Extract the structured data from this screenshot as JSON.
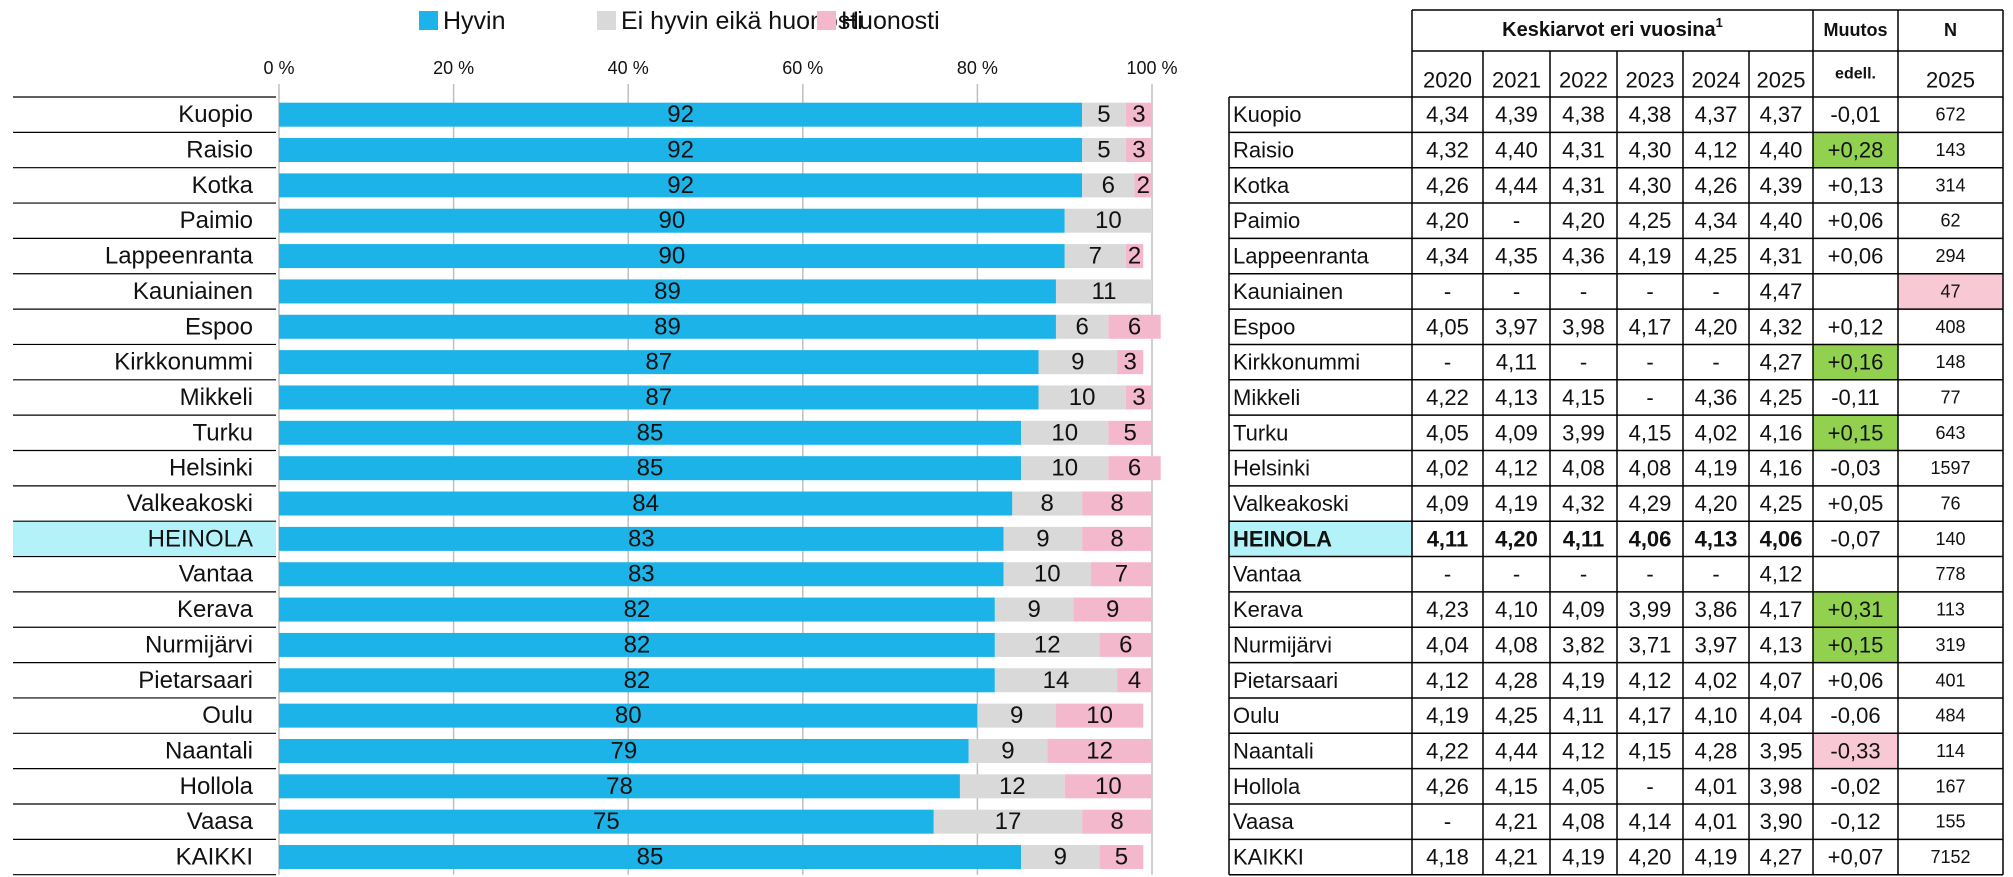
{
  "chart_data": {
    "type": "bar",
    "orientation": "horizontal",
    "stacked": true,
    "categories": [
      "Kuopio",
      "Raisio",
      "Kotka",
      "Paimio",
      "Lappeenranta",
      "Kauniainen",
      "Espoo",
      "Kirkkonummi",
      "Mikkeli",
      "Turku",
      "Helsinki",
      "Valkeakoski",
      "HEINOLA",
      "Vantaa",
      "Kerava",
      "Nurmijärvi",
      "Pietarsaari",
      "Oulu",
      "Naantali",
      "Hollola",
      "Vaasa",
      "KAIKKI"
    ],
    "series": [
      {
        "name": "Hyvin",
        "color": "#1cb4e8",
        "values": [
          92,
          92,
          92,
          90,
          90,
          89,
          89,
          87,
          87,
          85,
          85,
          84,
          83,
          83,
          82,
          82,
          82,
          80,
          79,
          78,
          75,
          85
        ]
      },
      {
        "name": "Ei hyvin eikä huonosti",
        "color": "#d9d9d9",
        "values": [
          5,
          5,
          6,
          10,
          7,
          11,
          6,
          9,
          10,
          10,
          10,
          8,
          9,
          10,
          9,
          12,
          14,
          9,
          9,
          12,
          17,
          9
        ]
      },
      {
        "name": "Huonosti",
        "color": "#f4b8cc",
        "values": [
          3,
          3,
          2,
          null,
          2,
          null,
          6,
          3,
          3,
          5,
          6,
          8,
          8,
          7,
          9,
          6,
          4,
          10,
          12,
          10,
          8,
          5
        ]
      }
    ],
    "xlim": [
      0,
      100
    ],
    "xticks": [
      {
        "value": 0,
        "label": "0 %"
      },
      {
        "value": 20,
        "label": "20 %"
      },
      {
        "value": 40,
        "label": "40 %"
      },
      {
        "value": 60,
        "label": "60 %"
      },
      {
        "value": 80,
        "label": "80 %"
      },
      {
        "value": 100,
        "label": "100 %"
      }
    ],
    "grid": true,
    "legend": "top",
    "highlight": 12,
    "highlight_color": "#b3f2f8"
  },
  "table": {
    "header": "Keskiarvot eri vuosina",
    "header_sup": "1",
    "change_header": "Muutos",
    "change_sub": "edell.",
    "n_header": "N",
    "n_year": "2025",
    "years": [
      "2020",
      "2021",
      "2022",
      "2023",
      "2024",
      "2025"
    ],
    "bold_row": 12,
    "highlight_color": "#b3f2f8",
    "rows": [
      {
        "name": "Kuopio",
        "values": [
          "4,34",
          "4,39",
          "4,38",
          "4,38",
          "4,37",
          "4,37"
        ],
        "change": "-0,01",
        "n": "672"
      },
      {
        "name": "Raisio",
        "values": [
          "4,32",
          "4,40",
          "4,31",
          "4,30",
          "4,12",
          "4,40"
        ],
        "change": "+0,28",
        "n": "143",
        "change_color": "#92d050"
      },
      {
        "name": "Kotka",
        "values": [
          "4,26",
          "4,44",
          "4,31",
          "4,30",
          "4,26",
          "4,39"
        ],
        "change": "+0,13",
        "n": "314"
      },
      {
        "name": "Paimio",
        "values": [
          "4,20",
          "-",
          "4,20",
          "4,25",
          "4,34",
          "4,40"
        ],
        "change": "+0,06",
        "n": "62"
      },
      {
        "name": "Lappeenranta",
        "values": [
          "4,34",
          "4,35",
          "4,36",
          "4,19",
          "4,25",
          "4,31"
        ],
        "change": "+0,06",
        "n": "294"
      },
      {
        "name": "Kauniainen",
        "values": [
          "-",
          "-",
          "-",
          "-",
          "-",
          "4,47"
        ],
        "change": null,
        "n": "47",
        "n_color": "#f8c9d4",
        "n_text_color": "#c00000"
      },
      {
        "name": "Espoo",
        "values": [
          "4,05",
          "3,97",
          "3,98",
          "4,17",
          "4,20",
          "4,32"
        ],
        "change": "+0,12",
        "n": "408"
      },
      {
        "name": "Kirkkonummi",
        "values": [
          "-",
          "4,11",
          "-",
          "-",
          "-",
          "4,27"
        ],
        "change": "+0,16",
        "n": "148",
        "change_color": "#92d050"
      },
      {
        "name": "Mikkeli",
        "values": [
          "4,22",
          "4,13",
          "4,15",
          "-",
          "4,36",
          "4,25"
        ],
        "change": "-0,11",
        "n": "77"
      },
      {
        "name": "Turku",
        "values": [
          "4,05",
          "4,09",
          "3,99",
          "4,15",
          "4,02",
          "4,16"
        ],
        "change": "+0,15",
        "n": "643",
        "change_color": "#92d050"
      },
      {
        "name": "Helsinki",
        "values": [
          "4,02",
          "4,12",
          "4,08",
          "4,08",
          "4,19",
          "4,16"
        ],
        "change": "-0,03",
        "n": "1597"
      },
      {
        "name": "Valkeakoski",
        "values": [
          "4,09",
          "4,19",
          "4,32",
          "4,29",
          "4,20",
          "4,25"
        ],
        "change": "+0,05",
        "n": "76"
      },
      {
        "name": "HEINOLA",
        "values": [
          "4,11",
          "4,20",
          "4,11",
          "4,06",
          "4,13",
          "4,06"
        ],
        "change": "-0,07",
        "n": "140"
      },
      {
        "name": "Vantaa",
        "values": [
          "-",
          "-",
          "-",
          "-",
          "-",
          "4,12"
        ],
        "change": null,
        "n": "778"
      },
      {
        "name": "Kerava",
        "values": [
          "4,23",
          "4,10",
          "4,09",
          "3,99",
          "3,86",
          "4,17"
        ],
        "change": "+0,31",
        "n": "113",
        "change_color": "#92d050"
      },
      {
        "name": "Nurmijärvi",
        "values": [
          "4,04",
          "4,08",
          "3,82",
          "3,71",
          "3,97",
          "4,13"
        ],
        "change": "+0,15",
        "n": "319",
        "change_color": "#92d050"
      },
      {
        "name": "Pietarsaari",
        "values": [
          "4,12",
          "4,28",
          "4,19",
          "4,12",
          "4,02",
          "4,07"
        ],
        "change": "+0,06",
        "n": "401"
      },
      {
        "name": "Oulu",
        "values": [
          "4,19",
          "4,25",
          "4,11",
          "4,17",
          "4,10",
          "4,04"
        ],
        "change": "-0,06",
        "n": "484"
      },
      {
        "name": "Naantali",
        "values": [
          "4,22",
          "4,44",
          "4,12",
          "4,15",
          "4,28",
          "3,95"
        ],
        "change": "-0,33",
        "n": "114",
        "change_color": "#f8c9d4"
      },
      {
        "name": "Hollola",
        "values": [
          "4,26",
          "4,15",
          "4,05",
          "-",
          "4,01",
          "3,98"
        ],
        "change": "-0,02",
        "n": "167"
      },
      {
        "name": "Vaasa",
        "values": [
          "-",
          "4,21",
          "4,08",
          "4,14",
          "4,01",
          "3,90"
        ],
        "change": "-0,12",
        "n": "155"
      },
      {
        "name": "KAIKKI",
        "values": [
          "4,18",
          "4,21",
          "4,19",
          "4,20",
          "4,19",
          "4,27"
        ],
        "change": "+0,07",
        "n": "7152"
      }
    ]
  }
}
